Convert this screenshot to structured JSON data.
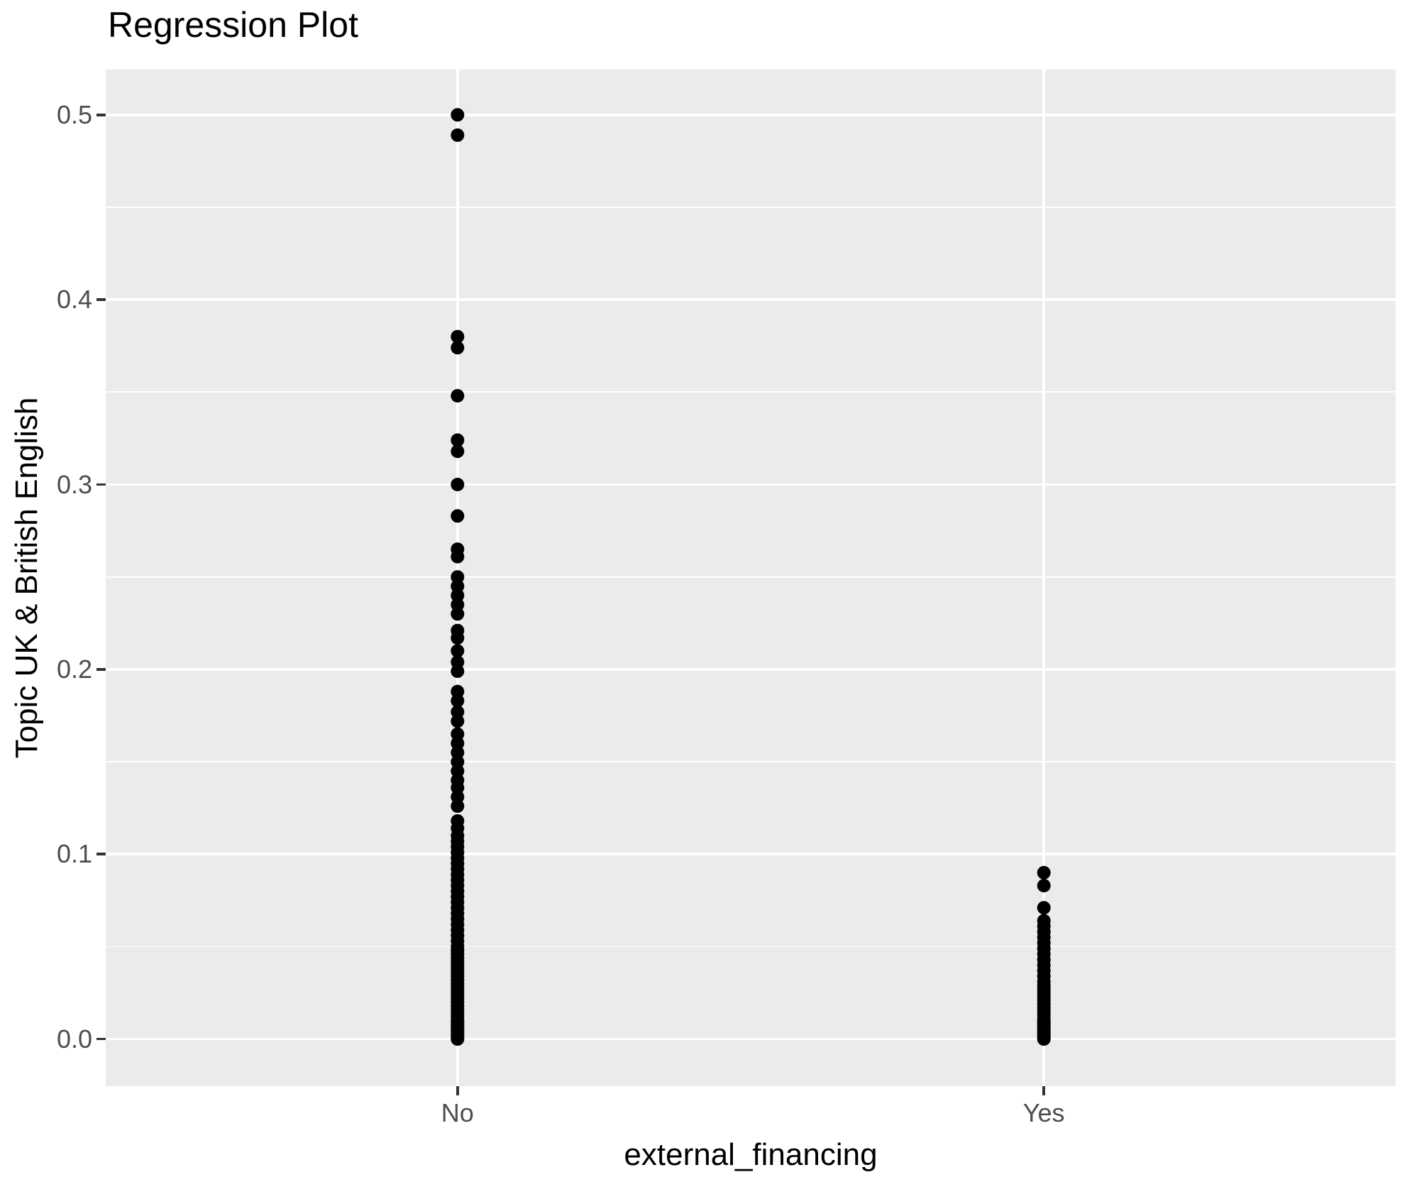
{
  "title": "Regression Plot",
  "chart_data": {
    "type": "scatter",
    "title": "Regression Plot",
    "xlabel": "external_financing",
    "ylabel": "Topic UK & British English",
    "categories": [
      "No",
      "Yes"
    ],
    "y_tick_labels": [
      "0.0",
      "0.1",
      "0.2",
      "0.3",
      "0.4",
      "0.5"
    ],
    "y_major_breaks": [
      0.0,
      0.1,
      0.2,
      0.3,
      0.4,
      0.5
    ],
    "y_minor_breaks": [
      0.05,
      0.15,
      0.25,
      0.35,
      0.45
    ],
    "ylim": [
      -0.0255,
      0.5245
    ],
    "grid": true,
    "legend": "none",
    "panel_bg": "#EBEBEB",
    "grid_color": "#FFFFFF",
    "point_color": "#000000",
    "tick_label_color": "#4D4D4D",
    "series": [
      {
        "name": "No",
        "values": [
          0.5,
          0.489,
          0.38,
          0.374,
          0.348,
          0.324,
          0.318,
          0.3,
          0.283,
          0.265,
          0.261,
          0.25,
          0.245,
          0.24,
          0.235,
          0.23,
          0.221,
          0.217,
          0.21,
          0.204,
          0.199,
          0.188,
          0.183,
          0.177,
          0.172,
          0.165,
          0.16,
          0.155,
          0.15,
          0.145,
          0.14,
          0.136,
          0.131,
          0.126,
          0.118,
          0.114,
          0.11,
          0.107,
          0.104,
          0.101,
          0.098,
          0.095,
          0.092,
          0.089,
          0.086,
          0.083,
          0.08,
          0.077,
          0.074,
          0.071,
          0.068,
          0.065,
          0.062,
          0.059,
          0.056,
          0.053,
          0.05,
          0.048,
          0.046,
          0.044,
          0.042,
          0.04,
          0.038,
          0.036,
          0.034,
          0.032,
          0.03,
          0.028,
          0.026,
          0.024,
          0.022,
          0.02,
          0.018,
          0.016,
          0.014,
          0.012,
          0.01,
          0.009,
          0.008,
          0.007,
          0.006,
          0.005,
          0.004,
          0.003,
          0.002,
          0.001,
          0.0
        ]
      },
      {
        "name": "Yes",
        "values": [
          0.09,
          0.083,
          0.071,
          0.064,
          0.061,
          0.058,
          0.055,
          0.052,
          0.049,
          0.046,
          0.043,
          0.04,
          0.037,
          0.034,
          0.031,
          0.029,
          0.027,
          0.025,
          0.023,
          0.021,
          0.019,
          0.017,
          0.015,
          0.013,
          0.011,
          0.01,
          0.009,
          0.008,
          0.007,
          0.006,
          0.005,
          0.004,
          0.003,
          0.002,
          0.001,
          0.0
        ]
      }
    ]
  }
}
